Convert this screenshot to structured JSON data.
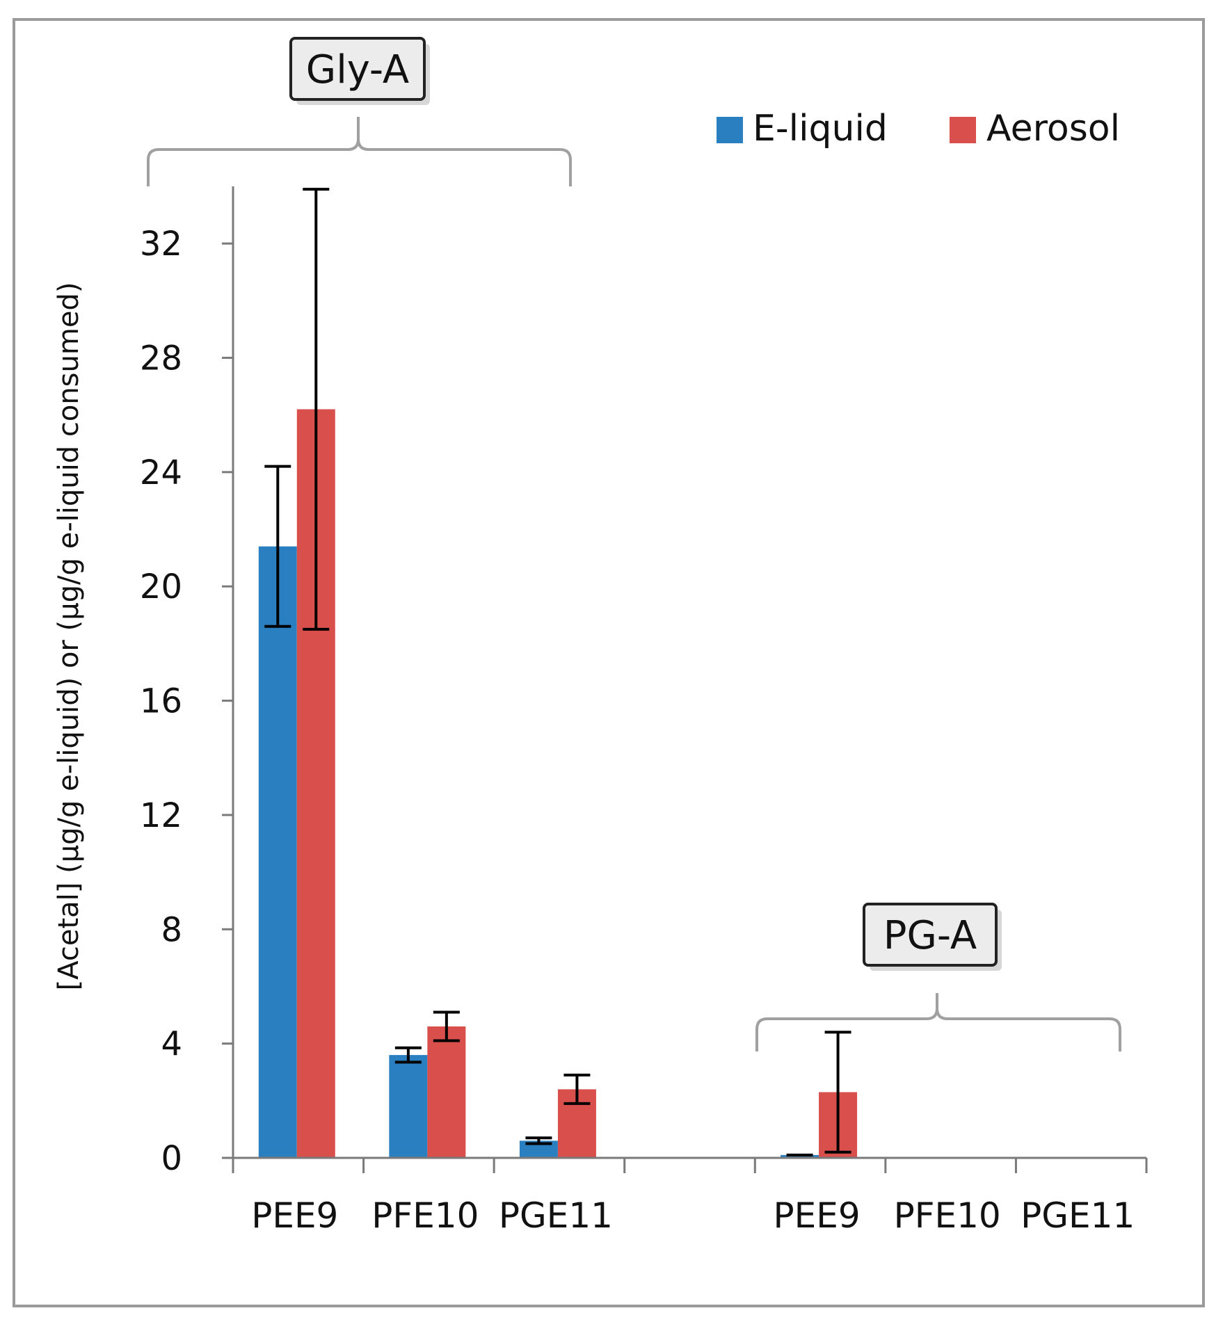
{
  "chart_data": {
    "type": "bar",
    "title": "",
    "xlabel": "",
    "ylabel": "[Acetal] (µg/g e-liquid) or (µg/g e-liquid consumed)",
    "ylim": [
      0,
      34
    ],
    "yticks": [
      0,
      4,
      8,
      12,
      16,
      20,
      24,
      28,
      32
    ],
    "grid": false,
    "legend_position": "top-right",
    "groups": [
      {
        "label": "Gly-A",
        "categories": [
          "PEE9",
          "PFE10",
          "PGE11"
        ],
        "series": [
          {
            "name": "E-liquid",
            "values": [
              21.4,
              3.6,
              0.6
            ],
            "errors": [
              2.8,
              0.25,
              0.1
            ]
          },
          {
            "name": "Aerosol",
            "values": [
              26.2,
              4.6,
              2.4
            ],
            "errors": [
              7.7,
              0.5,
              0.5
            ]
          }
        ]
      },
      {
        "label": "PG-A",
        "categories": [
          "PEE9",
          "PFE10",
          "PGE11"
        ],
        "series": [
          {
            "name": "E-liquid",
            "values": [
              0.1,
              0,
              0
            ],
            "errors": [
              0,
              0,
              0
            ]
          },
          {
            "name": "Aerosol",
            "values": [
              2.3,
              0,
              0
            ],
            "errors": [
              2.1,
              0,
              0
            ]
          }
        ]
      }
    ],
    "legend": [
      {
        "name": "E-liquid",
        "color": "#2a7fc1"
      },
      {
        "name": "Aerosol",
        "color": "#d94f4c"
      }
    ]
  }
}
